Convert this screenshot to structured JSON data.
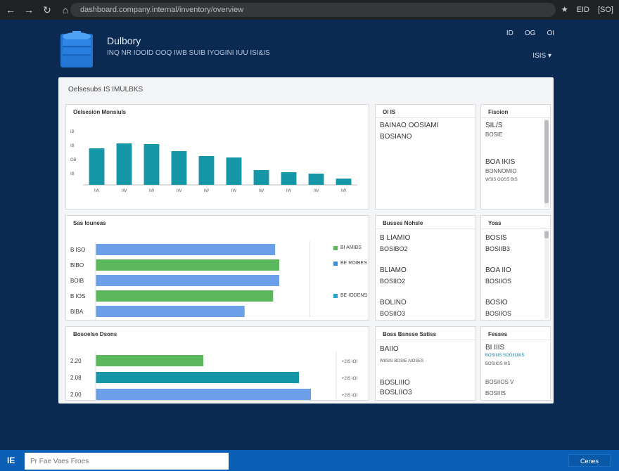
{
  "browser": {
    "url": "dashboard.company.internal/inventory/overview",
    "right_items": [
      "★",
      "EID",
      "[SO]"
    ],
    "icons": [
      "back-icon",
      "forward-icon",
      "reload-icon",
      "home-icon"
    ]
  },
  "header": {
    "title": "Dulbory",
    "subtitle": "INQ NR IOOID OOQ IWB SUIB IYOGINI IUU ISI&IS",
    "icon_labels": [
      "ID",
      "OG",
      "OI"
    ],
    "menu_label": "ISIS ▾"
  },
  "panel": {
    "title": "Oelsesubs IS IMULBKS"
  },
  "chart1": {
    "title": "Oelsesion Monsiuls",
    "chart_data": {
      "type": "bar",
      "categories": [
        "IW",
        "IW",
        "IW",
        "IW",
        "IW",
        "IW",
        "IW",
        "IW",
        "IW",
        "IW"
      ],
      "values": [
        52,
        59,
        58,
        48,
        41,
        39,
        21,
        18,
        16,
        9
      ],
      "ylim": [
        0,
        80
      ],
      "y_ticks": [
        "IB",
        "OB",
        "IB",
        "IB"
      ],
      "color": "#1597a8"
    }
  },
  "card_top_mid": {
    "title": "Ol IS",
    "line1": "BAINAO OOSIAMI",
    "line2": "BOSIANO"
  },
  "card_top_right": {
    "title": "Fisoion",
    "line1": "SIL/S",
    "line2": "BOSIE",
    "line3": "BOA IKIS",
    "line4": "BONNOMIO",
    "line5": "WSIS OOSS BIS"
  },
  "chart2": {
    "title": "Sas Iouneas",
    "chart_data": {
      "type": "bar",
      "orientation": "horizontal",
      "categories": [
        "B ISO",
        "BIBO",
        "BOIB",
        "B IOS",
        "BIBA"
      ],
      "series": [
        {
          "name": "BI AMIBS",
          "color": "#5cb85c"
        },
        {
          "name": "BE ROIBES",
          "color": "#3a8fd6"
        },
        {
          "name": "BE IODENS",
          "color": "#2aa3c8"
        }
      ],
      "values": [
        88,
        90,
        90,
        87,
        73
      ],
      "colors": [
        "#6b9fe8",
        "#5cb85c",
        "#6b9fe8",
        "#5cb85c",
        "#6b9fe8"
      ],
      "xlim": [
        0,
        100
      ]
    }
  },
  "card_mid_mid": {
    "title": "Busses Nohsle",
    "items": [
      "B LIAMIO",
      "BOSIBO2",
      "BLIAMO",
      "BOSIIO2",
      "BOLINO",
      "BOSIIO3"
    ]
  },
  "card_mid_right": {
    "title": "Yoas",
    "items": [
      "BOSIS",
      "BOSIIB3",
      "BOA IIO",
      "BOSIIOS",
      "BOSIO",
      "BOSIIOS"
    ]
  },
  "chart3": {
    "title": "Bosoelse Dsons",
    "chart_data": {
      "type": "bar",
      "orientation": "horizontal",
      "categories": [
        "2.20",
        "2.08",
        "2.00"
      ],
      "values": [
        45,
        85,
        90
      ],
      "colors": [
        "#5cb85c",
        "#1597a8",
        "#6b9fe8"
      ],
      "side_ticks": [
        "+2IS IOI",
        "+2IS IOI",
        "+2IS IOI"
      ],
      "xlim": [
        0,
        100
      ]
    }
  },
  "card_bot_mid": {
    "title": "Boss Bsnsse Satiss",
    "items": [
      "BAIIO",
      "WIISIS BOSIE AIOSES",
      "BOSLIIIO",
      "BOSLIIO3"
    ]
  },
  "card_bot_right": {
    "title": "Fesses",
    "items": [
      "BI IIIS",
      "BOSIIIIS SOOIIOIIIS",
      "BOSIIOS IIIS",
      "BOSIIOS V",
      "BOSIIIS"
    ]
  },
  "bottom": {
    "input_placeholder": "Pr Fae Vaes Froes",
    "button_label": "Cenes",
    "icon": "IE"
  }
}
